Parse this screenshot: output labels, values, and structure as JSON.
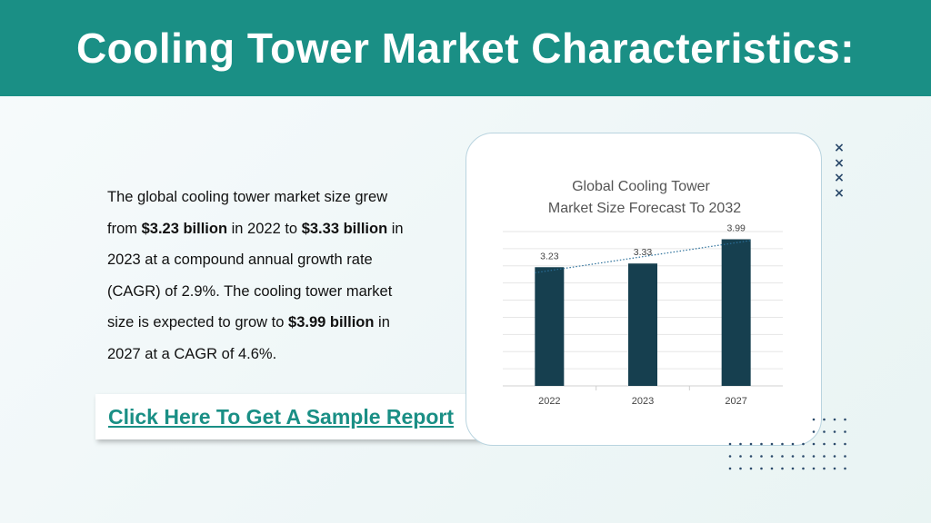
{
  "header": {
    "title": "Cooling Tower Market Characteristics:"
  },
  "body": {
    "p1": "The global cooling tower market size grew from ",
    "b1": "$3.23 billion",
    "p2": " in 2022 to ",
    "b2": "$3.33 billion",
    "p3": " in 2023 at a compound annual growth rate (CAGR) of 2.9%. The cooling tower market size is expected to grow to ",
    "b3": "$3.99 billion",
    "p4": " in 2027 at a CAGR of 4.6%."
  },
  "cta": {
    "label": "Click Here To Get A Sample Report"
  },
  "decor": {
    "x_mark": "×"
  },
  "colors": {
    "header": "#1a8f85",
    "bar": "#163f4f",
    "link": "#1a8f85"
  },
  "chart_data": {
    "type": "bar",
    "title_line1": "Global Cooling Tower",
    "title_line2": "Market Size Forecast To 2032",
    "categories": [
      "2022",
      "2023",
      "2027"
    ],
    "values": [
      3.23,
      3.33,
      3.99
    ],
    "data_labels": [
      "3.23",
      "3.33",
      "3.99"
    ],
    "trendline": "dotted linear",
    "ylim": [
      0,
      4.2
    ],
    "grid": true,
    "xlabel": "",
    "ylabel": ""
  }
}
